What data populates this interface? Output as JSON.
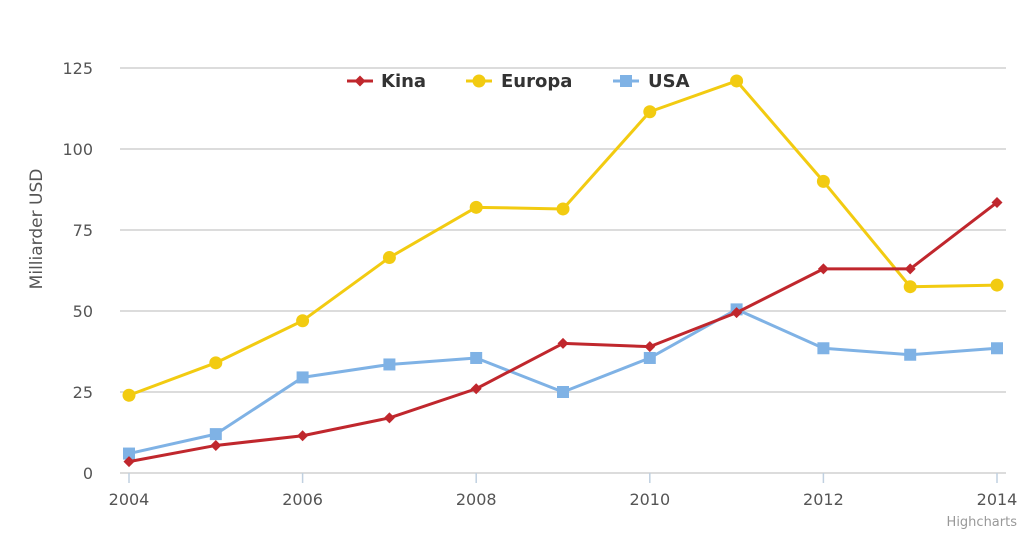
{
  "chart_data": {
    "type": "line",
    "title": "",
    "xlabel": "",
    "ylabel": "Milliarder USD",
    "x": [
      2004,
      2005,
      2006,
      2007,
      2008,
      2009,
      2010,
      2011,
      2012,
      2013,
      2014
    ],
    "x_ticks": [
      "2004",
      "2006",
      "2008",
      "2010",
      "2012",
      "2014"
    ],
    "x_tick_values": [
      2004,
      2006,
      2008,
      2010,
      2012,
      2014
    ],
    "xlim": [
      2004,
      2014
    ],
    "y_ticks": [
      "0",
      "25",
      "50",
      "75",
      "100",
      "125"
    ],
    "y_tick_values": [
      0,
      25,
      50,
      75,
      100,
      125
    ],
    "ylim": [
      0,
      125
    ],
    "grid": true,
    "legend_position": "top-center",
    "series": [
      {
        "name": "Kina",
        "color": "#c0272d",
        "marker": "diamond",
        "values": [
          3.5,
          8.5,
          11.5,
          17,
          26,
          40,
          39,
          49.5,
          63,
          63,
          83.5
        ]
      },
      {
        "name": "Europa",
        "color": "#f2cb11",
        "marker": "circle",
        "values": [
          24,
          34,
          47,
          66.5,
          82,
          81.5,
          111.5,
          121,
          90,
          57.5,
          58
        ]
      },
      {
        "name": "USA",
        "color": "#7fb2e5",
        "marker": "square",
        "values": [
          6,
          12,
          29.5,
          33.5,
          35.5,
          25,
          35.5,
          50.5,
          38.5,
          36.5,
          38.5
        ]
      }
    ]
  },
  "credits": "Highcharts"
}
